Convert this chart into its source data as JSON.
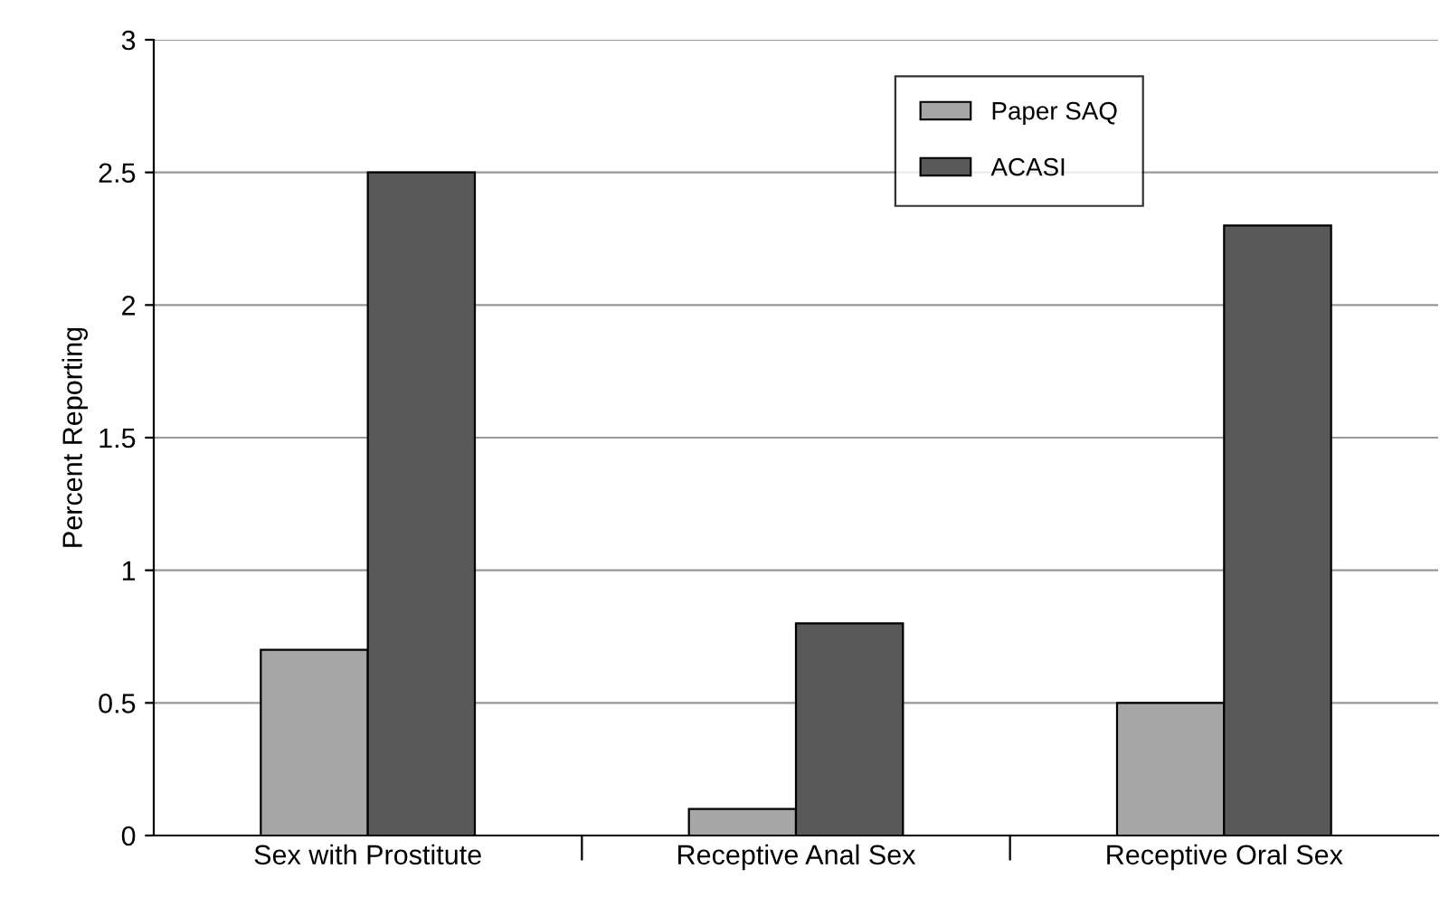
{
  "chart_data": {
    "type": "bar",
    "ylabel": "Percent Reporting",
    "categories": [
      "Sex with Prostitute",
      "Receptive Anal Sex",
      "Receptive Oral Sex"
    ],
    "series": [
      {
        "name": "Paper SAQ",
        "color": "#a6a6a6",
        "values": [
          0.7,
          0.1,
          0.5
        ]
      },
      {
        "name": "ACASI",
        "color": "#595959",
        "values": [
          2.5,
          0.8,
          2.3
        ]
      }
    ],
    "ylim": [
      0,
      3
    ],
    "yticks": [
      0,
      0.5,
      1,
      1.5,
      2,
      2.5,
      3
    ],
    "grid": "y",
    "legend": "top right"
  }
}
